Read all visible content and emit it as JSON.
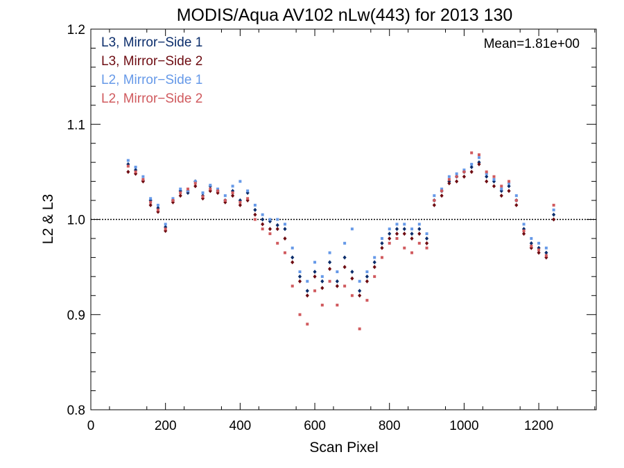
{
  "chart_data": {
    "type": "scatter",
    "title": "MODIS/Aqua AV102 nLw(443) for 2013 130",
    "xlabel": "Scan Pixel",
    "ylabel": "L2 & L3",
    "xlim": [
      0,
      1354
    ],
    "ylim": [
      0.8,
      1.2
    ],
    "x_ticks": [
      0,
      200,
      400,
      600,
      800,
      1000,
      1200
    ],
    "x_tick_labels": [
      "0",
      "200",
      "400",
      "600",
      "800",
      "1000",
      "1200"
    ],
    "y_ticks": [
      0.8,
      0.9,
      1.0,
      1.1,
      1.2
    ],
    "y_tick_labels": [
      "0.8",
      "0.9",
      "1.0",
      "1.1",
      "1.2"
    ],
    "reference_line": 1.0,
    "grid": false,
    "legend_position": "top-left",
    "annotation": "Mean=1.81e+00",
    "annotation_color": "#c85a5a",
    "series": [
      {
        "name": "L3, Mirror−Side 1",
        "color": "#0b2d6b",
        "marker": "diamond",
        "x": [
          100,
          120,
          140,
          160,
          180,
          200,
          220,
          240,
          260,
          280,
          300,
          320,
          340,
          360,
          380,
          400,
          420,
          440,
          460,
          480,
          500,
          520,
          540,
          560,
          580,
          600,
          620,
          640,
          660,
          680,
          700,
          720,
          740,
          760,
          780,
          800,
          820,
          840,
          860,
          880,
          900,
          920,
          940,
          960,
          980,
          1000,
          1020,
          1040,
          1060,
          1080,
          1100,
          1120,
          1140,
          1160,
          1180,
          1200,
          1220,
          1240
        ],
        "y": [
          1.058,
          1.052,
          1.041,
          1.02,
          1.012,
          0.992,
          1.02,
          1.03,
          1.028,
          1.04,
          1.025,
          1.035,
          1.03,
          1.02,
          1.03,
          1.02,
          1.028,
          1.01,
          1.0,
          0.998,
          0.994,
          0.99,
          0.96,
          0.94,
          0.925,
          0.945,
          0.935,
          0.955,
          0.935,
          0.96,
          0.945,
          0.925,
          0.94,
          0.955,
          0.975,
          0.985,
          0.99,
          0.99,
          0.985,
          0.99,
          0.98,
          1.02,
          1.03,
          1.04,
          1.045,
          1.05,
          1.055,
          1.06,
          1.045,
          1.04,
          1.03,
          1.035,
          1.02,
          0.99,
          0.975,
          0.97,
          0.965,
          1.005
        ]
      },
      {
        "name": "L3, Mirror−Side 2",
        "color": "#6e0c12",
        "marker": "diamond",
        "x": [
          100,
          120,
          140,
          160,
          180,
          200,
          220,
          240,
          260,
          280,
          300,
          320,
          340,
          360,
          380,
          400,
          420,
          440,
          460,
          480,
          500,
          520,
          540,
          560,
          580,
          600,
          620,
          640,
          660,
          680,
          700,
          720,
          740,
          760,
          780,
          800,
          820,
          840,
          860,
          880,
          900,
          920,
          940,
          960,
          980,
          1000,
          1020,
          1040,
          1060,
          1080,
          1100,
          1120,
          1140,
          1160,
          1180,
          1200,
          1220,
          1240
        ],
        "y": [
          1.05,
          1.048,
          1.04,
          1.015,
          1.008,
          0.988,
          1.018,
          1.025,
          1.03,
          1.035,
          1.022,
          1.03,
          1.028,
          1.018,
          1.025,
          1.015,
          1.02,
          1.005,
          0.995,
          0.99,
          0.99,
          0.98,
          0.955,
          0.935,
          0.92,
          0.94,
          0.928,
          0.948,
          0.93,
          0.95,
          0.938,
          0.92,
          0.935,
          0.95,
          0.97,
          0.98,
          0.985,
          0.985,
          0.98,
          0.985,
          0.975,
          1.015,
          1.025,
          1.038,
          1.04,
          1.045,
          1.05,
          1.058,
          1.04,
          1.035,
          1.025,
          1.03,
          1.015,
          0.985,
          0.97,
          0.965,
          0.96,
          1.0
        ]
      },
      {
        "name": "L2, Mirror−Side 1",
        "color": "#6699e8",
        "marker": "square",
        "x": [
          100,
          120,
          140,
          160,
          180,
          200,
          220,
          240,
          260,
          280,
          300,
          320,
          340,
          360,
          380,
          400,
          420,
          440,
          460,
          480,
          500,
          520,
          540,
          560,
          580,
          600,
          620,
          640,
          660,
          680,
          700,
          720,
          740,
          760,
          780,
          800,
          820,
          840,
          860,
          880,
          900,
          920,
          940,
          960,
          980,
          1000,
          1020,
          1040,
          1060,
          1080,
          1100,
          1120,
          1140,
          1160,
          1180,
          1200,
          1220,
          1240
        ],
        "y": [
          1.062,
          1.055,
          1.045,
          1.022,
          1.015,
          0.995,
          1.022,
          1.032,
          1.03,
          1.04,
          1.028,
          1.036,
          1.032,
          1.025,
          1.035,
          1.04,
          1.03,
          1.015,
          1.005,
          1.0,
          1.0,
          0.995,
          0.97,
          0.945,
          0.935,
          0.955,
          0.94,
          0.965,
          0.945,
          0.975,
          0.99,
          0.935,
          0.945,
          0.96,
          0.98,
          0.99,
          0.995,
          0.995,
          0.99,
          0.995,
          0.985,
          1.025,
          1.032,
          1.045,
          1.048,
          1.052,
          1.058,
          1.065,
          1.048,
          1.042,
          1.032,
          1.038,
          1.025,
          0.995,
          0.98,
          0.975,
          0.97,
          1.01
        ]
      },
      {
        "name": "L2, Mirror−Side 2",
        "color": "#d05a5e",
        "marker": "square",
        "x": [
          100,
          120,
          140,
          160,
          180,
          200,
          220,
          240,
          260,
          280,
          300,
          320,
          340,
          360,
          380,
          400,
          420,
          440,
          460,
          480,
          500,
          520,
          540,
          560,
          580,
          600,
          620,
          640,
          660,
          680,
          700,
          720,
          740,
          760,
          780,
          800,
          820,
          840,
          860,
          880,
          900,
          920,
          940,
          960,
          980,
          1000,
          1020,
          1040,
          1060,
          1080,
          1100,
          1120,
          1140,
          1160,
          1180,
          1200,
          1220,
          1240
        ],
        "y": [
          1.056,
          1.05,
          1.042,
          1.018,
          1.01,
          0.99,
          1.02,
          1.028,
          1.032,
          1.038,
          1.024,
          1.032,
          1.03,
          1.02,
          1.028,
          1.018,
          1.022,
          1.0,
          0.99,
          0.985,
          0.975,
          0.965,
          0.93,
          0.9,
          0.89,
          0.925,
          0.91,
          0.935,
          0.91,
          0.93,
          0.92,
          0.885,
          0.915,
          0.94,
          0.96,
          0.975,
          0.98,
          0.97,
          0.965,
          0.975,
          0.97,
          1.02,
          1.03,
          1.042,
          1.045,
          1.05,
          1.07,
          1.068,
          1.05,
          1.045,
          1.035,
          1.04,
          1.02,
          0.988,
          0.972,
          0.968,
          0.962,
          1.015
        ]
      }
    ]
  }
}
